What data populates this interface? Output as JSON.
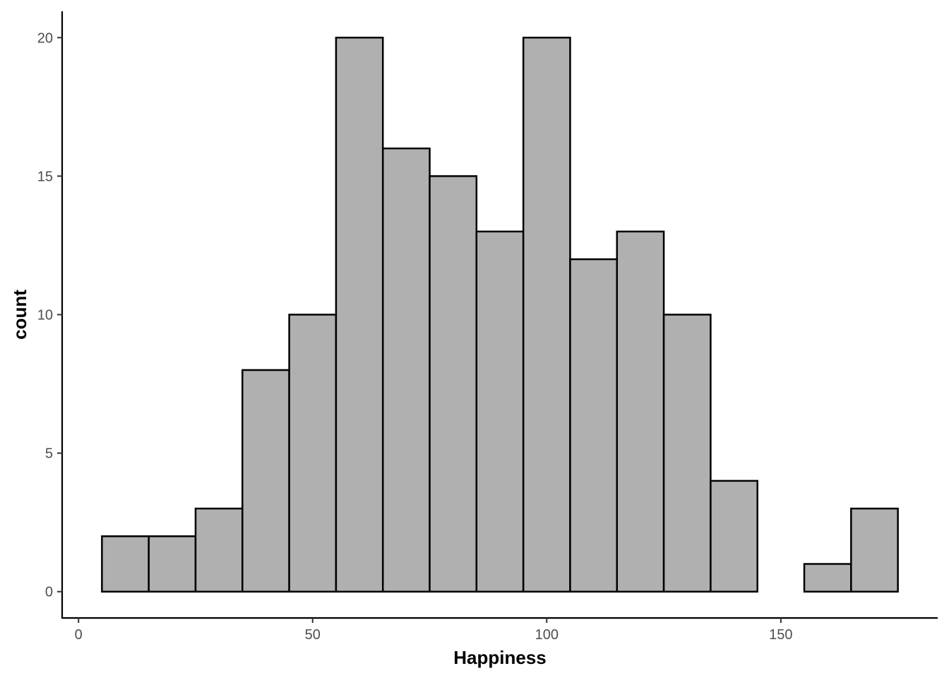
{
  "chart_data": {
    "type": "bar",
    "subtype": "histogram",
    "xlabel": "Happiness",
    "ylabel": "count",
    "xlim": [
      -3.5,
      183.5
    ],
    "ylim": [
      -0.95,
      20.95
    ],
    "x_ticks": [
      0,
      50,
      100,
      150
    ],
    "y_ticks": [
      0,
      5,
      10,
      15,
      20
    ],
    "binwidth": 10,
    "bins": [
      {
        "x0": 5,
        "x1": 15,
        "count": 2
      },
      {
        "x0": 15,
        "x1": 25,
        "count": 2
      },
      {
        "x0": 25,
        "x1": 35,
        "count": 3
      },
      {
        "x0": 35,
        "x1": 45,
        "count": 8
      },
      {
        "x0": 45,
        "x1": 55,
        "count": 10
      },
      {
        "x0": 55,
        "x1": 65,
        "count": 20
      },
      {
        "x0": 65,
        "x1": 75,
        "count": 16
      },
      {
        "x0": 75,
        "x1": 85,
        "count": 15
      },
      {
        "x0": 85,
        "x1": 95,
        "count": 13
      },
      {
        "x0": 95,
        "x1": 105,
        "count": 20
      },
      {
        "x0": 105,
        "x1": 115,
        "count": 12
      },
      {
        "x0": 115,
        "x1": 125,
        "count": 13
      },
      {
        "x0": 125,
        "x1": 135,
        "count": 10
      },
      {
        "x0": 135,
        "x1": 145,
        "count": 4
      },
      {
        "x0": 145,
        "x1": 155,
        "count": 0
      },
      {
        "x0": 155,
        "x1": 165,
        "count": 1
      },
      {
        "x0": 165,
        "x1": 175,
        "count": 3
      }
    ],
    "grid": false,
    "bar_fill": "#b0b0b0",
    "bar_outline": "#000000"
  }
}
